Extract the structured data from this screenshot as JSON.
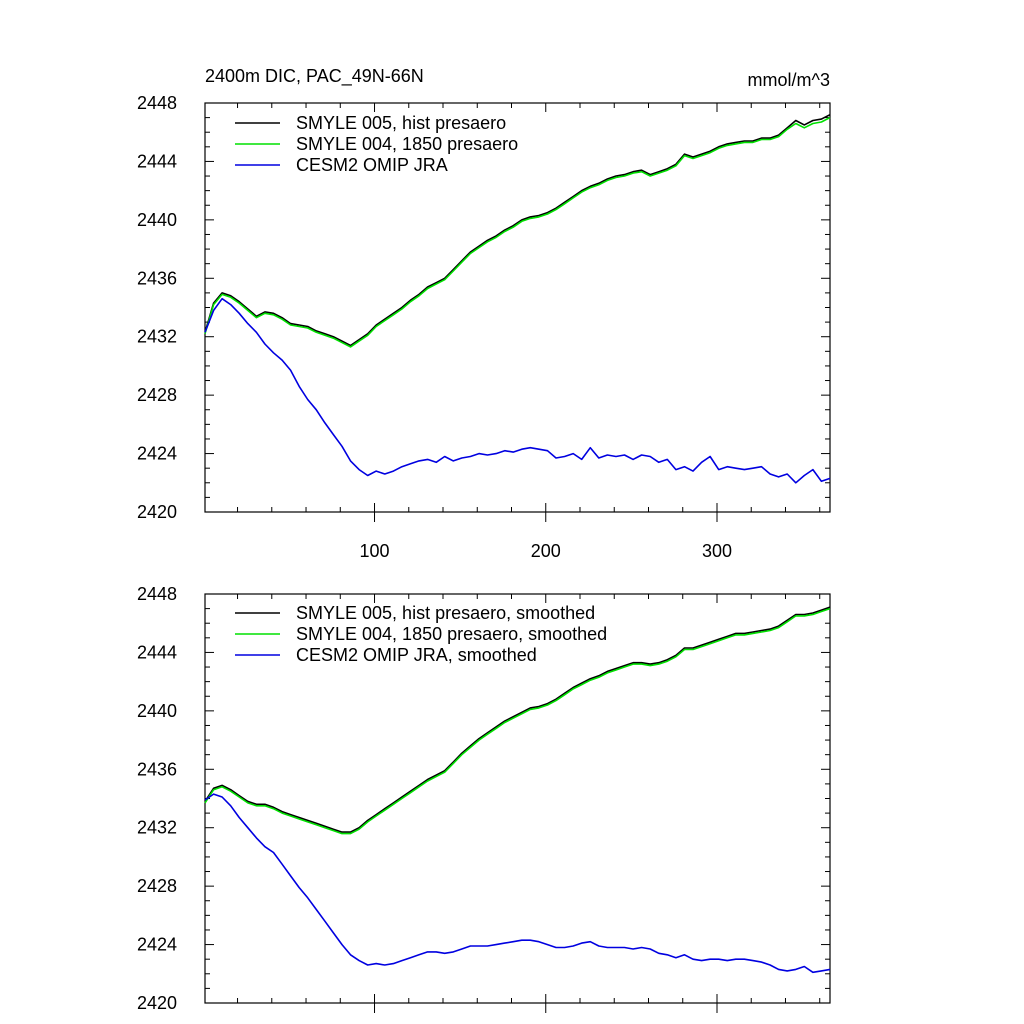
{
  "chart_data": [
    {
      "type": "line",
      "title": "2400m DIC, PAC_49N-66N",
      "units": "mmol/m^3",
      "xlim": [
        1,
        366
      ],
      "ylim": [
        2420,
        2448
      ],
      "x_major_ticks": [
        100,
        200,
        300
      ],
      "x_tick_labels": [
        "100",
        "200",
        "300"
      ],
      "y_major_ticks": [
        2420,
        2424,
        2428,
        2432,
        2436,
        2440,
        2444,
        2448
      ],
      "y_tick_labels": [
        "2420",
        "2424",
        "2428",
        "2432",
        "2436",
        "2440",
        "2444",
        "2448"
      ],
      "legend_position": "top-left",
      "x": [
        1,
        6,
        11,
        16,
        21,
        26,
        31,
        36,
        41,
        46,
        51,
        56,
        61,
        66,
        71,
        76,
        81,
        86,
        91,
        96,
        101,
        106,
        111,
        116,
        121,
        126,
        131,
        136,
        141,
        146,
        151,
        156,
        161,
        166,
        171,
        176,
        181,
        186,
        191,
        196,
        201,
        206,
        211,
        216,
        221,
        226,
        231,
        236,
        241,
        246,
        251,
        256,
        261,
        266,
        271,
        276,
        281,
        286,
        291,
        296,
        301,
        306,
        311,
        316,
        321,
        326,
        331,
        336,
        341,
        346,
        351,
        356,
        361,
        366
      ],
      "series": [
        {
          "name": "SMYLE 005, hist presaero",
          "color": "#000000",
          "values": [
            2432.3,
            2434.3,
            2435.0,
            2434.8,
            2434.4,
            2433.9,
            2433.4,
            2433.7,
            2433.6,
            2433.3,
            2432.9,
            2432.8,
            2432.7,
            2432.4,
            2432.2,
            2432.0,
            2431.7,
            2431.4,
            2431.8,
            2432.2,
            2432.8,
            2433.2,
            2433.6,
            2434.0,
            2434.5,
            2434.9,
            2435.4,
            2435.7,
            2436.0,
            2436.6,
            2437.2,
            2437.8,
            2438.2,
            2438.6,
            2438.9,
            2439.3,
            2439.6,
            2440.0,
            2440.2,
            2440.3,
            2440.5,
            2440.8,
            2441.2,
            2441.6,
            2442.0,
            2442.3,
            2442.5,
            2442.8,
            2443.0,
            2443.1,
            2443.3,
            2443.4,
            2443.1,
            2443.3,
            2443.5,
            2443.8,
            2444.5,
            2444.3,
            2444.5,
            2444.7,
            2445.0,
            2445.2,
            2445.3,
            2445.4,
            2445.4,
            2445.6,
            2445.6,
            2445.8,
            2446.3,
            2446.8,
            2446.5,
            2446.8,
            2446.9,
            2447.2
          ]
        },
        {
          "name": "SMYLE 004, 1850 presaero",
          "color": "#00e000",
          "values": [
            2432.2,
            2434.2,
            2434.9,
            2434.7,
            2434.3,
            2433.8,
            2433.3,
            2433.6,
            2433.5,
            2433.2,
            2432.8,
            2432.7,
            2432.6,
            2432.3,
            2432.1,
            2431.9,
            2431.6,
            2431.3,
            2431.7,
            2432.1,
            2432.7,
            2433.1,
            2433.5,
            2433.9,
            2434.4,
            2434.8,
            2435.3,
            2435.6,
            2435.9,
            2436.5,
            2437.1,
            2437.7,
            2438.1,
            2438.5,
            2438.8,
            2439.2,
            2439.5,
            2439.9,
            2440.1,
            2440.2,
            2440.4,
            2440.7,
            2441.1,
            2441.5,
            2441.9,
            2442.2,
            2442.4,
            2442.7,
            2442.9,
            2443.0,
            2443.2,
            2443.3,
            2443.0,
            2443.2,
            2443.4,
            2443.7,
            2444.4,
            2444.2,
            2444.4,
            2444.6,
            2444.9,
            2445.1,
            2445.2,
            2445.3,
            2445.3,
            2445.5,
            2445.5,
            2445.7,
            2446.2,
            2446.6,
            2446.3,
            2446.6,
            2446.7,
            2447.0
          ]
        },
        {
          "name": "CESM2 OMIP JRA",
          "color": "#0000e0",
          "values": [
            2432.3,
            2433.8,
            2434.6,
            2434.2,
            2433.6,
            2432.9,
            2432.3,
            2431.5,
            2430.9,
            2430.4,
            2429.7,
            2428.6,
            2427.7,
            2427.0,
            2426.1,
            2425.3,
            2424.5,
            2423.5,
            2422.9,
            2422.5,
            2422.8,
            2422.6,
            2422.8,
            2423.1,
            2423.3,
            2423.5,
            2423.6,
            2423.4,
            2423.8,
            2423.5,
            2423.7,
            2423.8,
            2424.0,
            2423.9,
            2424.0,
            2424.2,
            2424.1,
            2424.3,
            2424.4,
            2424.3,
            2424.2,
            2423.7,
            2423.8,
            2424.0,
            2423.6,
            2424.4,
            2423.7,
            2423.9,
            2423.8,
            2423.9,
            2423.6,
            2423.9,
            2423.8,
            2423.4,
            2423.6,
            2422.9,
            2423.1,
            2422.8,
            2423.4,
            2423.8,
            2422.9,
            2423.1,
            2423.0,
            2422.9,
            2423.0,
            2423.1,
            2422.6,
            2422.4,
            2422.6,
            2422.0,
            2422.5,
            2422.9,
            2422.1,
            2422.3
          ]
        }
      ]
    },
    {
      "type": "line",
      "title": "",
      "units": "",
      "xlim": [
        1,
        366
      ],
      "ylim": [
        2420,
        2448
      ],
      "x_major_ticks": [
        100,
        200,
        300
      ],
      "x_tick_labels": [],
      "y_major_ticks": [
        2420,
        2424,
        2428,
        2432,
        2436,
        2440,
        2444,
        2448
      ],
      "y_tick_labels": [
        "2420",
        "2424",
        "2428",
        "2432",
        "2436",
        "2440",
        "2444",
        "2448"
      ],
      "legend_position": "top-left",
      "x": [
        1,
        6,
        11,
        16,
        21,
        26,
        31,
        36,
        41,
        46,
        51,
        56,
        61,
        66,
        71,
        76,
        81,
        86,
        91,
        96,
        101,
        106,
        111,
        116,
        121,
        126,
        131,
        136,
        141,
        146,
        151,
        156,
        161,
        166,
        171,
        176,
        181,
        186,
        191,
        196,
        201,
        206,
        211,
        216,
        221,
        226,
        231,
        236,
        241,
        246,
        251,
        256,
        261,
        266,
        271,
        276,
        281,
        286,
        291,
        296,
        301,
        306,
        311,
        316,
        321,
        326,
        331,
        336,
        341,
        346,
        351,
        356,
        361,
        366
      ],
      "series": [
        {
          "name": "SMYLE 005, hist presaero, smoothed",
          "color": "#000000",
          "values": [
            2433.8,
            2434.7,
            2434.9,
            2434.6,
            2434.2,
            2433.8,
            2433.6,
            2433.6,
            2433.4,
            2433.1,
            2432.9,
            2432.7,
            2432.5,
            2432.3,
            2432.1,
            2431.9,
            2431.7,
            2431.7,
            2432.0,
            2432.5,
            2432.9,
            2433.3,
            2433.7,
            2434.1,
            2434.5,
            2434.9,
            2435.3,
            2435.6,
            2435.9,
            2436.5,
            2437.1,
            2437.6,
            2438.1,
            2438.5,
            2438.9,
            2439.3,
            2439.6,
            2439.9,
            2440.2,
            2440.3,
            2440.5,
            2440.8,
            2441.2,
            2441.6,
            2441.9,
            2442.2,
            2442.4,
            2442.7,
            2442.9,
            2443.1,
            2443.3,
            2443.3,
            2443.2,
            2443.3,
            2443.5,
            2443.8,
            2444.3,
            2444.3,
            2444.5,
            2444.7,
            2444.9,
            2445.1,
            2445.3,
            2445.3,
            2445.4,
            2445.5,
            2445.6,
            2445.8,
            2446.2,
            2446.6,
            2446.6,
            2446.7,
            2446.9,
            2447.1
          ]
        },
        {
          "name": "SMYLE 004, 1850 presaero, smoothed",
          "color": "#00e000",
          "values": [
            2433.7,
            2434.6,
            2434.8,
            2434.5,
            2434.1,
            2433.7,
            2433.5,
            2433.5,
            2433.3,
            2433.0,
            2432.8,
            2432.6,
            2432.4,
            2432.2,
            2432.0,
            2431.8,
            2431.6,
            2431.6,
            2431.9,
            2432.4,
            2432.8,
            2433.2,
            2433.6,
            2434.0,
            2434.4,
            2434.8,
            2435.2,
            2435.5,
            2435.8,
            2436.4,
            2437.0,
            2437.5,
            2438.0,
            2438.4,
            2438.8,
            2439.2,
            2439.5,
            2439.8,
            2440.1,
            2440.2,
            2440.4,
            2440.7,
            2441.1,
            2441.5,
            2441.8,
            2442.1,
            2442.3,
            2442.6,
            2442.8,
            2443.0,
            2443.2,
            2443.2,
            2443.1,
            2443.2,
            2443.4,
            2443.7,
            2444.2,
            2444.2,
            2444.4,
            2444.6,
            2444.8,
            2445.0,
            2445.2,
            2445.2,
            2445.3,
            2445.4,
            2445.5,
            2445.7,
            2446.1,
            2446.5,
            2446.5,
            2446.6,
            2446.8,
            2447.0
          ]
        },
        {
          "name": "CESM2 OMIP JRA, smoothed",
          "color": "#0000e0",
          "values": [
            2433.9,
            2434.3,
            2434.1,
            2433.5,
            2432.7,
            2432.0,
            2431.3,
            2430.7,
            2430.3,
            2429.5,
            2428.7,
            2427.9,
            2427.2,
            2426.4,
            2425.6,
            2424.8,
            2424.0,
            2423.3,
            2422.9,
            2422.6,
            2422.7,
            2422.6,
            2422.7,
            2422.9,
            2423.1,
            2423.3,
            2423.5,
            2423.5,
            2423.4,
            2423.5,
            2423.7,
            2423.9,
            2423.9,
            2423.9,
            2424.0,
            2424.1,
            2424.2,
            2424.3,
            2424.3,
            2424.2,
            2424.0,
            2423.8,
            2423.8,
            2423.9,
            2424.1,
            2424.2,
            2423.9,
            2423.8,
            2423.8,
            2423.8,
            2423.7,
            2423.8,
            2423.7,
            2423.4,
            2423.3,
            2423.1,
            2423.3,
            2423.0,
            2422.9,
            2423.0,
            2423.0,
            2422.9,
            2423.0,
            2423.0,
            2422.9,
            2422.8,
            2422.6,
            2422.3,
            2422.2,
            2422.3,
            2422.5,
            2422.1,
            2422.2,
            2422.3
          ]
        }
      ]
    }
  ]
}
